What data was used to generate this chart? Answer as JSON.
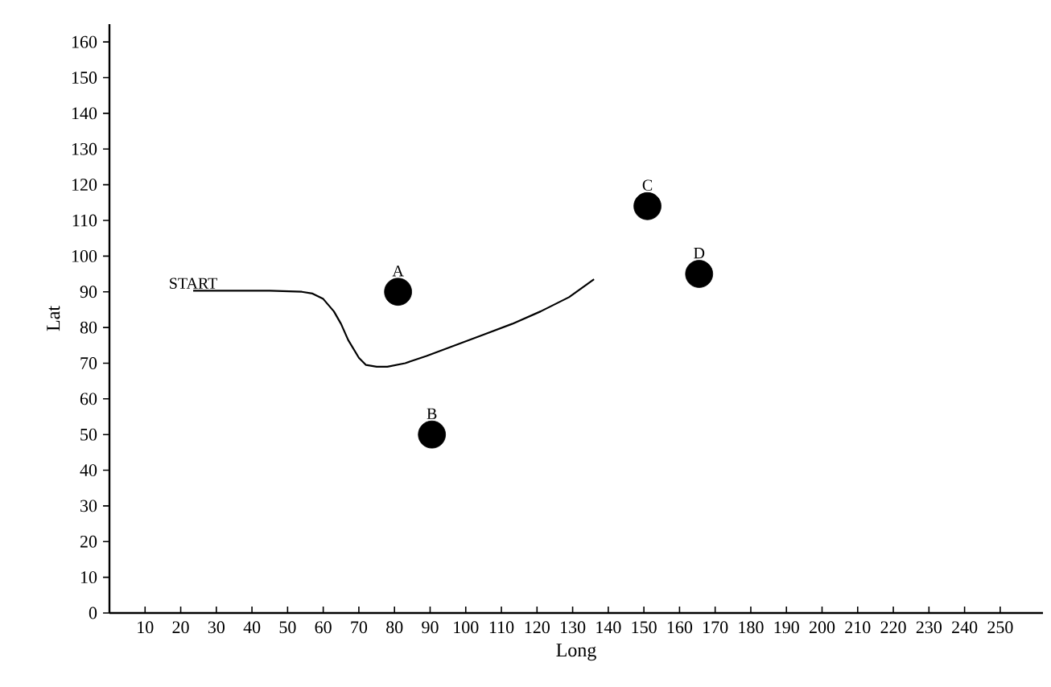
{
  "chart_data": {
    "type": "line",
    "xlabel": "Long",
    "ylabel": "Lat",
    "xlim": [
      0,
      262
    ],
    "ylim": [
      0,
      165
    ],
    "xticks": [
      10,
      20,
      30,
      40,
      50,
      60,
      70,
      80,
      90,
      100,
      110,
      120,
      130,
      140,
      150,
      160,
      170,
      180,
      190,
      200,
      210,
      220,
      230,
      240,
      250
    ],
    "yticks": [
      0,
      10,
      20,
      30,
      40,
      50,
      60,
      70,
      80,
      90,
      100,
      110,
      120,
      130,
      140,
      150,
      160
    ],
    "grid": false,
    "series": [
      {
        "color": "#000000",
        "line_style": "solid",
        "marker": "none",
        "x": [
          23.5,
          35,
          45,
          54,
          57,
          60,
          63,
          65,
          67,
          70,
          72,
          75,
          78,
          83,
          89,
          97,
          105,
          113,
          121,
          129,
          136
        ],
        "values": [
          90.3,
          90.3,
          90.3,
          90,
          89.5,
          88,
          84.5,
          81,
          76.5,
          71.5,
          69.5,
          69,
          69,
          70,
          72,
          75,
          78,
          81,
          84.5,
          88.5,
          93.5
        ]
      },
      {
        "type": "scatter",
        "marker": "circle",
        "color": "#000000",
        "x": [
          81,
          90.5,
          151,
          165.5
        ],
        "values": [
          90,
          50,
          114,
          95
        ]
      }
    ],
    "annotations": [
      {
        "text": "START",
        "x": 23.5,
        "y": 90.3
      },
      {
        "text": "A",
        "x": 81,
        "y": 90
      },
      {
        "text": "B",
        "x": 90.5,
        "y": 50
      },
      {
        "text": "C",
        "x": 151,
        "y": 114
      },
      {
        "text": "D",
        "x": 165.5,
        "y": 95
      }
    ]
  }
}
